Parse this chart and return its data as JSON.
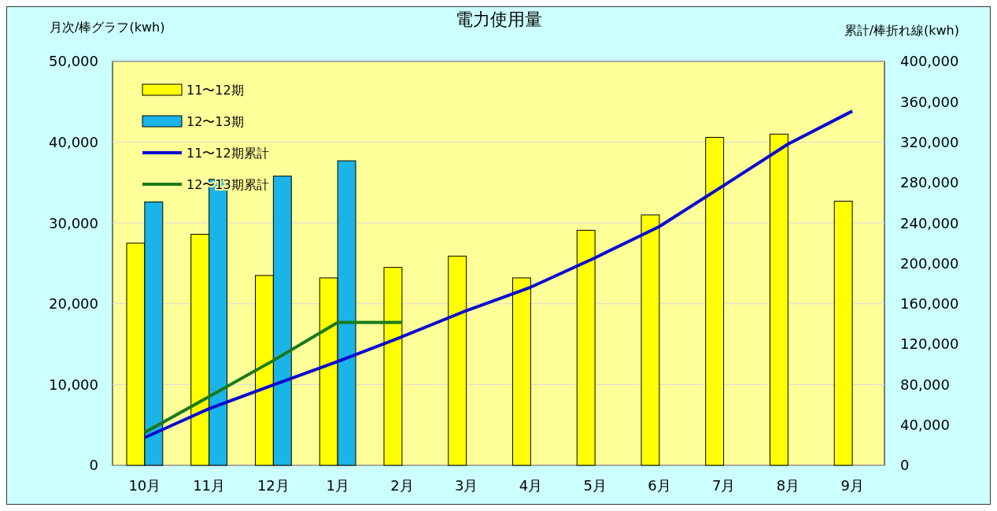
{
  "chart_data": {
    "type": "bar",
    "title": "電力使用量",
    "ylabel": "月次/棒グラフ(kwh)",
    "y2label": "累計/棒折れ線(kwh)",
    "categories": [
      "10月",
      "11月",
      "12月",
      "1月",
      "2月",
      "3月",
      "4月",
      "5月",
      "6月",
      "7月",
      "8月",
      "9月"
    ],
    "series": [
      {
        "name": "11〜12期",
        "color": "#ffff00",
        "values": [
          27500,
          28600,
          23500,
          23200,
          24500,
          25900,
          23200,
          29100,
          31000,
          40600,
          41000,
          32700
        ]
      },
      {
        "name": "12〜13期",
        "color": "#1ab4e8",
        "values": [
          32600,
          35400,
          35800,
          37700,
          null,
          null,
          null,
          null,
          null,
          null,
          null,
          null
        ]
      },
      {
        "name": "11〜12期累計",
        "type": "line",
        "axis": "y2",
        "color": "#0a0ad0",
        "values": [
          27500,
          56100,
          79600,
          102800,
          127300,
          153200,
          176400,
          205500,
          236500,
          277100,
          318100,
          350800
        ]
      },
      {
        "name": "12〜13期累計",
        "type": "line",
        "axis": "y2",
        "color": "#1a7a1a",
        "values": [
          32600,
          68000,
          103800,
          141500,
          141500,
          null,
          null,
          null,
          null,
          null,
          null,
          null
        ]
      }
    ],
    "ylim": [
      0,
      50000
    ],
    "yticks": [
      {
        "value": 0,
        "label": "0"
      },
      {
        "value": 10000,
        "label": "10,000"
      },
      {
        "value": 20000,
        "label": "20,000"
      },
      {
        "value": 30000,
        "label": "30,000"
      },
      {
        "value": 40000,
        "label": "40,000"
      },
      {
        "value": 50000,
        "label": "50,000"
      }
    ],
    "y2lim": [
      0,
      400000
    ],
    "y2ticks": [
      {
        "value": 0,
        "label": "0"
      },
      {
        "value": 40000,
        "label": "40,000"
      },
      {
        "value": 80000,
        "label": "80,000"
      },
      {
        "value": 120000,
        "label": "120,000"
      },
      {
        "value": 160000,
        "label": "160,000"
      },
      {
        "value": 200000,
        "label": "200,000"
      },
      {
        "value": 240000,
        "label": "240,000"
      },
      {
        "value": 280000,
        "label": "280,000"
      },
      {
        "value": 320000,
        "label": "320,000"
      },
      {
        "value": 360000,
        "label": "360,000"
      },
      {
        "value": 400000,
        "label": "400,000"
      }
    ],
    "grid": "y",
    "legend": "top left",
    "marker": "none",
    "line_style": "solid"
  }
}
